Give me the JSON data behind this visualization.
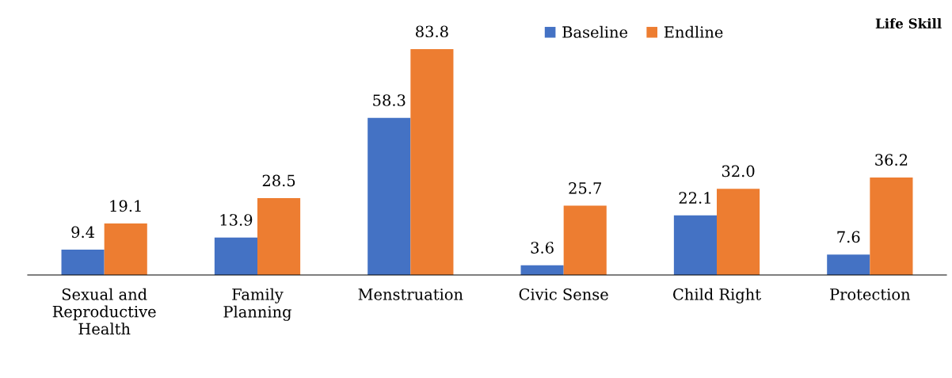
{
  "chart_data": {
    "type": "bar",
    "title": "Life Skill",
    "categories": [
      "Sexual and Reproductive Health",
      "Family Planning",
      "Menstruation",
      "Civic Sense",
      "Child Right",
      "Protection"
    ],
    "series": [
      {
        "name": "Baseline",
        "color": "#4472c4",
        "values": [
          9.4,
          13.9,
          58.3,
          3.6,
          22.1,
          7.6
        ],
        "value_labels": [
          "9.4",
          "13.9",
          "58.3",
          "3.6",
          "22.1",
          "7.6"
        ]
      },
      {
        "name": "Endline",
        "color": "#ed7d31",
        "values": [
          19.1,
          28.5,
          83.8,
          25.7,
          32.0,
          36.2
        ],
        "value_labels": [
          "19.1",
          "28.5",
          "83.8",
          "25.7",
          "32.0",
          "36.2"
        ]
      }
    ],
    "legend": "top",
    "grid": false
  }
}
